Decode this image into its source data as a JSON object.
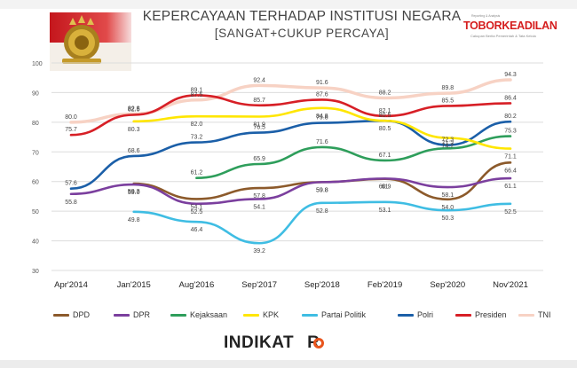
{
  "header": {
    "title": "KEPERCAYAAN TERHADAP INSTITUSI NEGARA",
    "subtitle": "[SANGAT+CUKUP PERCAYA]",
    "brand": "TOBORKEADILAN",
    "brand_tagline": "Reporting & Analysis",
    "brand_sub": "Cakupan Berita Pemerintah & Tata Kelola"
  },
  "footer": {
    "logo_text": "INDIKAT",
    "logo_text_end": "R"
  },
  "chart_data": {
    "type": "line",
    "categories": [
      "Apr'2014",
      "Jan'2015",
      "Aug'2016",
      "Sep'2017",
      "Sep'2018",
      "Feb'2019",
      "Sep'2020",
      "Nov'2021"
    ],
    "ylim": [
      30,
      100
    ],
    "yticks": [
      "30",
      "40",
      "50",
      "60",
      "70",
      "80",
      "90",
      "100"
    ],
    "grid": true,
    "legend_position": "bottom",
    "series": [
      {
        "name": "DPD",
        "color": "#8c5a2b",
        "values": [
          null,
          59.3,
          54.1,
          57.8,
          59.8,
          60.9,
          54.0,
          66.4
        ],
        "labels": [
          "",
          "59.3",
          "54.1",
          "57.8",
          "59.8",
          "60.9",
          "54.0",
          "66.4"
        ]
      },
      {
        "name": "DPR",
        "color": "#7b3f9e",
        "values": [
          55.8,
          59.0,
          52.5,
          54.1,
          59.8,
          61.0,
          58.1,
          61.1
        ],
        "labels": [
          "55.8",
          "59.0",
          "52.5",
          "54.1",
          "59.8",
          "61",
          "58.1",
          "61.1"
        ]
      },
      {
        "name": "Kejaksaan",
        "color": "#2e9e5b",
        "values": [
          null,
          null,
          61.2,
          65.9,
          71.6,
          67.1,
          71.2,
          75.3
        ],
        "labels": [
          "",
          "",
          "61.2",
          "65.9",
          "71.6",
          "67.1",
          "71.2",
          "75.3"
        ]
      },
      {
        "name": "KPK",
        "color": "#ffe600",
        "values": [
          null,
          80.3,
          82.0,
          81.9,
          84.8,
          80.5,
          74.7,
          71.1
        ],
        "labels": [
          "",
          "80.3",
          "82.0",
          "81.9",
          "84.8",
          "80.5",
          "74.7",
          "71.1"
        ]
      },
      {
        "name": "Partai Politik",
        "color": "#3fbde3",
        "values": [
          null,
          49.8,
          46.4,
          39.2,
          52.8,
          53.1,
          50.3,
          52.5
        ],
        "labels": [
          "",
          "49.8",
          "46.4",
          "39.2",
          "52.8",
          "53.1",
          "50.3",
          "52.5"
        ]
      },
      {
        "name": "Polri",
        "color": "#1b5fa8",
        "values": [
          57.6,
          68.6,
          73.2,
          76.5,
          79.8,
          80.5,
          72.3,
          80.2
        ],
        "labels": [
          "57.6",
          "68.6",
          "73.2",
          "76.5",
          "79.8",
          "80.5",
          "72.3",
          "80.2"
        ]
      },
      {
        "name": "Presiden",
        "color": "#d71f26",
        "values": [
          75.7,
          82.5,
          89.1,
          85.7,
          87.6,
          82.1,
          85.5,
          86.4
        ],
        "labels": [
          "75.7",
          "82.5",
          "89.1",
          "85.7",
          "87.6",
          "82.1",
          "85.5",
          "86.4"
        ]
      },
      {
        "name": "TNI",
        "color": "#f7d2c4",
        "values": [
          80.0,
          82.8,
          87.5,
          92.4,
          91.6,
          88.2,
          89.8,
          94.3
        ],
        "labels": [
          "80.0",
          "82.8",
          "87.5",
          "92.4",
          "91.6",
          "88.2",
          "89.8",
          "94.3"
        ]
      }
    ]
  }
}
